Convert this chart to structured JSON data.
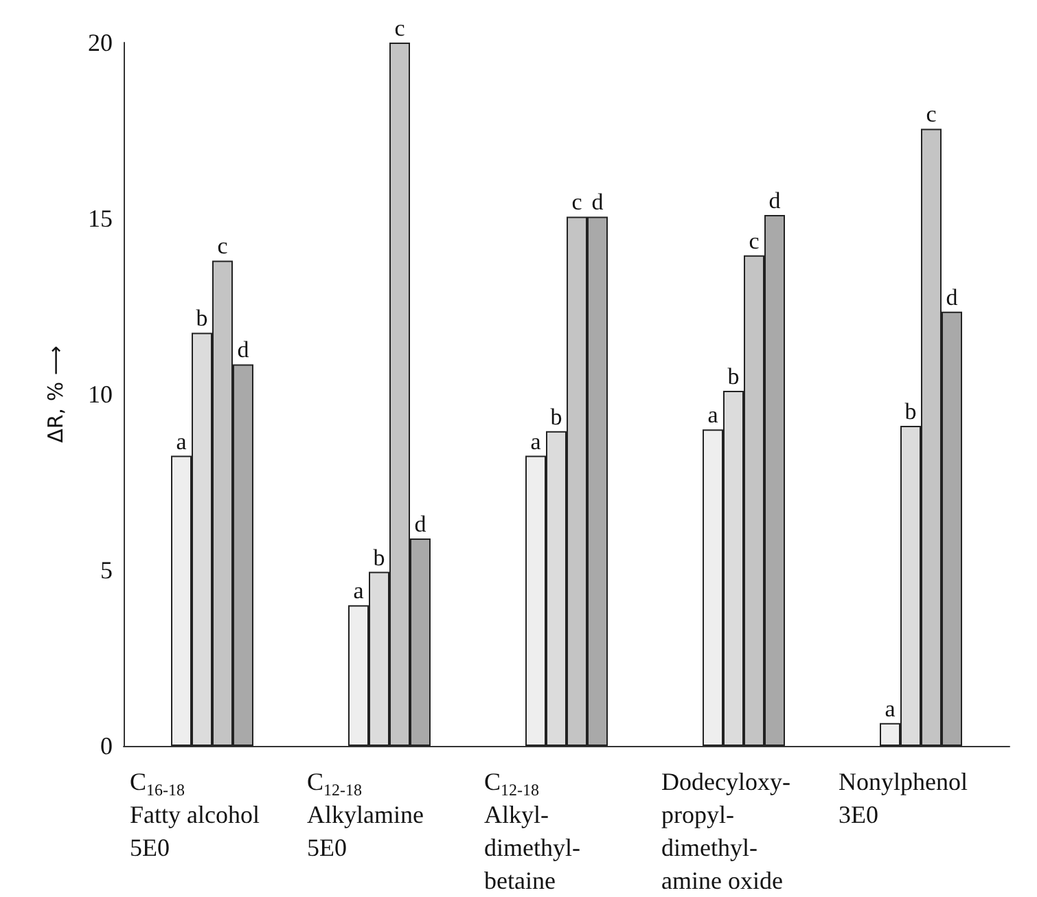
{
  "chart_data": {
    "type": "bar",
    "ylabel": "ΔR, % ⟶",
    "categories": [
      "C$_{16-18}$\nFatty alcohol\n5E0",
      "C$_{12-18}$\nAlkylamine\n5E0",
      "C$_{12-18}$\nAlkyl-\ndimethyl-\nbetaine",
      "Dodecyloxy-\npropyl-\ndimethyl-\namine oxide",
      "Nonylphenol\n3E0"
    ],
    "series": [
      {
        "name": "a",
        "color": "#eeeeee",
        "values": [
          8.25,
          4.0,
          8.25,
          9.0,
          0.65
        ]
      },
      {
        "name": "b",
        "color": "#dcdcdc",
        "values": [
          11.75,
          4.95,
          8.95,
          10.1,
          9.1
        ]
      },
      {
        "name": "c",
        "color": "#c4c4c4",
        "values": [
          13.8,
          20,
          15.05,
          13.95,
          17.55
        ]
      },
      {
        "name": "d",
        "color": "#a9a9a9",
        "values": [
          10.85,
          5.9,
          15.05,
          15.1,
          12.35
        ]
      }
    ],
    "ylim": [
      0,
      20
    ],
    "yticks": [
      0,
      5,
      10,
      15,
      20
    ],
    "grid": false,
    "legend": false
  }
}
